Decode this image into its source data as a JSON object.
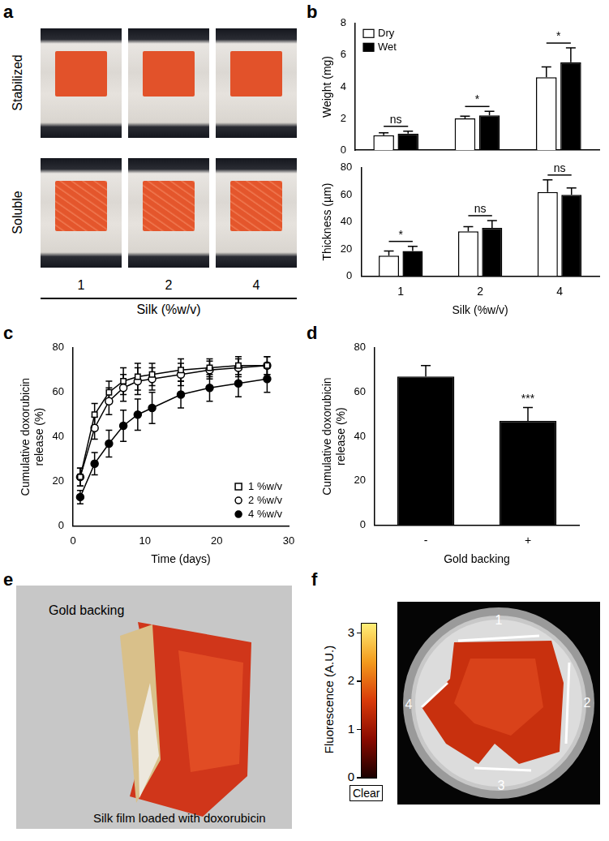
{
  "panel_labels": [
    "a",
    "b",
    "c",
    "d",
    "e",
    "f"
  ],
  "panel_a": {
    "row_labels": [
      "Stabilized",
      "Soluble"
    ],
    "column_labels": [
      "1",
      "2",
      "4"
    ],
    "xlabel": "Silk (%w/v)"
  },
  "chart_data": [
    {
      "type": "bar",
      "ylabel": "Weight (mg)",
      "categories": [
        "1",
        "2",
        "4"
      ],
      "series": [
        {
          "name": "Dry",
          "color": "#ffffff",
          "values": [
            0.95,
            2.0,
            4.6
          ],
          "errors": [
            0.15,
            0.15,
            0.65
          ]
        },
        {
          "name": "Wet",
          "color": "#000000",
          "values": [
            1.05,
            2.2,
            5.55
          ],
          "errors": [
            0.15,
            0.25,
            0.9
          ]
        }
      ],
      "ylim": [
        0,
        8
      ],
      "yticks": [
        0,
        2,
        4,
        6,
        8
      ],
      "grid": false,
      "legend": "top-left",
      "tick_labels": "y",
      "annotations": [
        {
          "category": "1",
          "text": "ns"
        },
        {
          "category": "2",
          "text": "*"
        },
        {
          "category": "4",
          "text": "*"
        }
      ]
    },
    {
      "type": "bar",
      "xlabel": "Silk (%w/v)",
      "ylabel": "Thickness (µm)",
      "categories": [
        "1",
        "2",
        "4"
      ],
      "series": [
        {
          "name": "Dry",
          "color": "#ffffff",
          "values": [
            15,
            33,
            62
          ],
          "errors": [
            3.5,
            3.5,
            9
          ]
        },
        {
          "name": "Wet",
          "color": "#000000",
          "values": [
            18.5,
            35.5,
            60
          ],
          "errors": [
            3.5,
            5.5,
            5
          ]
        }
      ],
      "ylim": [
        0,
        80
      ],
      "yticks": [
        0,
        20,
        40,
        60,
        80
      ],
      "grid": false,
      "annotations": [
        {
          "category": "1",
          "text": "*"
        },
        {
          "category": "2",
          "text": "ns"
        },
        {
          "category": "4",
          "text": "ns"
        }
      ]
    },
    {
      "type": "line",
      "xlabel": "Time (days)",
      "ylabel": "Cumulative doxorubicin release (%)",
      "x": [
        1,
        3,
        5,
        7,
        9,
        11,
        15,
        19,
        23,
        27
      ],
      "series": [
        {
          "name": "1 %w/v",
          "color": "#000000",
          "marker": "square_open",
          "values": [
            22,
            50,
            60,
            65,
            67,
            68,
            70,
            71,
            72,
            72
          ],
          "errors": [
            4,
            5,
            5,
            6,
            6,
            5,
            5,
            4,
            4,
            4
          ]
        },
        {
          "name": "2 %w/v",
          "color": "#000000",
          "marker": "circle_open",
          "values": [
            22,
            44,
            56,
            62,
            65,
            66,
            68,
            70,
            71,
            72
          ],
          "errors": [
            4,
            5,
            6,
            6,
            6,
            5,
            5,
            4,
            4,
            4
          ]
        },
        {
          "name": "4 %w/v",
          "color": "#000000",
          "marker": "circle",
          "values": [
            13,
            28,
            37,
            45,
            50,
            53,
            59,
            62,
            64,
            66
          ],
          "errors": [
            3,
            5,
            6,
            7,
            7,
            7,
            6,
            6,
            6,
            6
          ]
        }
      ],
      "xlim": [
        0,
        30
      ],
      "xticks": [
        0,
        10,
        20,
        30
      ],
      "ylim": [
        0,
        80
      ],
      "yticks": [
        0,
        20,
        40,
        60,
        80
      ],
      "grid": false,
      "legend": "bottom-right"
    },
    {
      "type": "bar",
      "xlabel": "Gold backing",
      "ylabel": "Cumulative doxorubicin release (%)",
      "categories": [
        "-",
        "+"
      ],
      "values": [
        67,
        47
      ],
      "errors": [
        5,
        6
      ],
      "color": "#000000",
      "ylim": [
        0,
        80
      ],
      "yticks": [
        0,
        20,
        40,
        60,
        80
      ],
      "grid": false,
      "annotations": [
        {
          "category": "+",
          "text": "***"
        }
      ]
    }
  ],
  "panel_e": {
    "labels": [
      "Gold backing",
      "Silk film loaded with doxorubicin"
    ]
  },
  "panel_f": {
    "colorbar": {
      "title": "Fluorescence (A.U.)",
      "range": [
        0,
        3.2
      ],
      "ticks": [
        0,
        1,
        2,
        3
      ],
      "bottom_label": "Clear"
    },
    "markers": [
      "1",
      "2",
      "3",
      "4"
    ]
  }
}
